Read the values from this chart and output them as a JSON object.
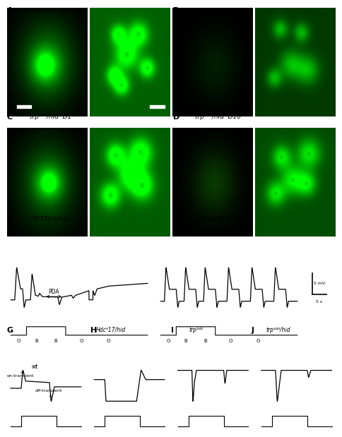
{
  "panel_titles": {
    "A": "FRT40A/hid",
    "B": "ninaA¹/hid",
    "C": "trp³⁴³/hid  D1",
    "D": "trp³⁴³/hid  D10",
    "E": "FRT40A/hid",
    "F": "ninaA¹/hid",
    "G_label": "wt",
    "G_sub1": "on-transient",
    "G_sub2": "off-transient",
    "H": "Hdcᴲ17/hid",
    "I": "trp³⁴³",
    "J": "trp³⁴³/hid"
  },
  "E_annotation": "PDA",
  "scalebar_label_v": "5 mV",
  "scalebar_label_h": "5 s",
  "stimulus_labels": [
    "O",
    "B",
    "B",
    "O",
    "O"
  ],
  "background_color": "#ffffff"
}
